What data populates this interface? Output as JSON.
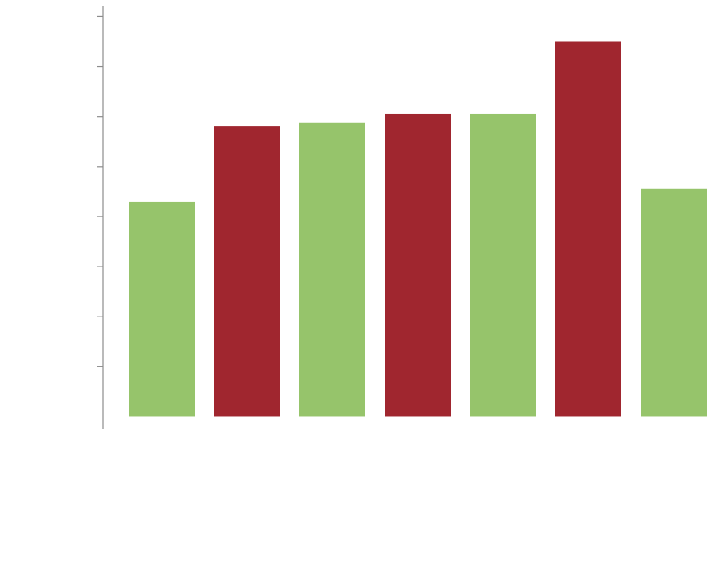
{
  "chart_data": {
    "type": "bar",
    "categories": [
      null,
      null,
      null,
      null,
      null,
      null,
      null
    ],
    "values": [
      4.29,
      5.8,
      5.87,
      6.06,
      6.06,
      7.5,
      4.55
    ],
    "colors": [
      "#96c46b",
      "#a0262f",
      "#96c46b",
      "#a0262f",
      "#96c46b",
      "#a0262f",
      "#96c46b"
    ],
    "ylim": [
      -0.25,
      8.2
    ],
    "yticks": [
      1,
      2,
      3,
      4,
      5,
      6,
      7,
      8
    ],
    "grid": false
  }
}
